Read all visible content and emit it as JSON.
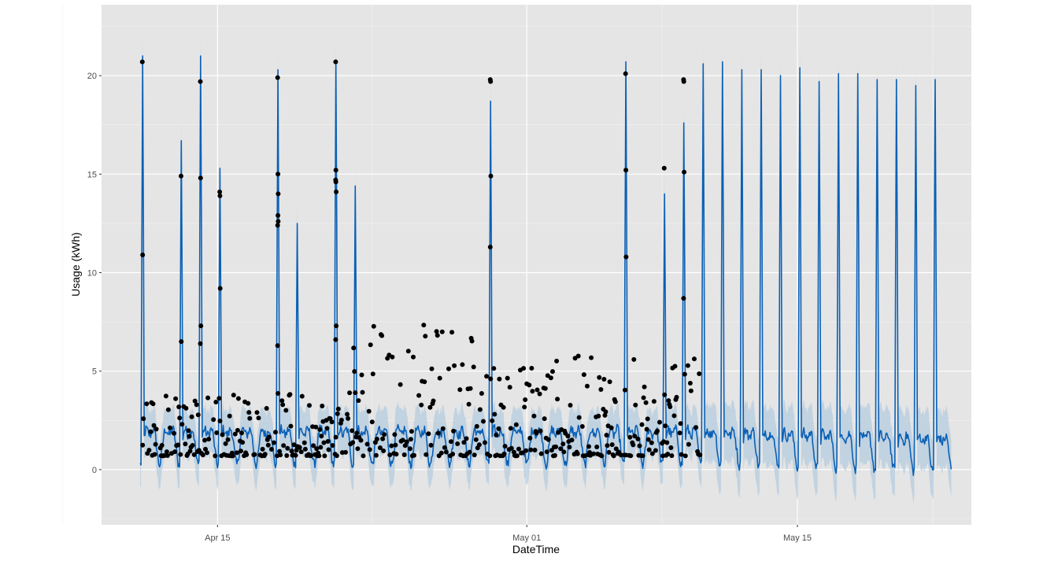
{
  "colors": {
    "panel_background": "#e5e5e5",
    "grid_major": "#ffffff",
    "grid_minor": "#f2f2f2",
    "forecast_line": "#0a60b5",
    "interval_band": "#a9c4dc",
    "points": "#000000",
    "tick_text": "#4d4d4d"
  },
  "chart_data": {
    "type": "line",
    "title": "",
    "xlabel": "DateTime",
    "ylabel": "Usage (kWh)",
    "x_type": "datetime",
    "xlim": [
      "2025-04-09",
      "2025-05-24"
    ],
    "ylim": [
      -2.8,
      23.6
    ],
    "x_ticks": [
      {
        "date": "2025-04-15",
        "label": "Apr 15"
      },
      {
        "date": "2025-05-01",
        "label": "May 01"
      },
      {
        "date": "2025-05-15",
        "label": "May 15"
      }
    ],
    "y_ticks": [
      0,
      5,
      10,
      15,
      20
    ],
    "grid": true,
    "legend": "none",
    "history_range": [
      "2025-04-11",
      "2025-05-09"
    ],
    "forecast_range": [
      "2025-04-11",
      "2025-05-22"
    ],
    "forecast_peaks": [
      {
        "date": "2025-04-11",
        "value": 21.0
      },
      {
        "date": "2025-04-13",
        "value": 16.7
      },
      {
        "date": "2025-04-14",
        "value": 21.0
      },
      {
        "date": "2025-04-15",
        "value": 15.3
      },
      {
        "date": "2025-04-18",
        "value": 20.3
      },
      {
        "date": "2025-04-19",
        "value": 12.5
      },
      {
        "date": "2025-04-21",
        "value": 20.8
      },
      {
        "date": "2025-04-22",
        "value": 14.4
      },
      {
        "date": "2025-04-29",
        "value": 18.7
      },
      {
        "date": "2025-05-06",
        "value": 20.7
      },
      {
        "date": "2025-05-08",
        "value": 14.0
      },
      {
        "date": "2025-05-09",
        "value": 17.6
      },
      {
        "date": "2025-05-10",
        "value": 20.6
      },
      {
        "date": "2025-05-11",
        "value": 20.7
      },
      {
        "date": "2025-05-12",
        "value": 20.3
      },
      {
        "date": "2025-05-13",
        "value": 20.3
      },
      {
        "date": "2025-05-14",
        "value": 20.0
      },
      {
        "date": "2025-05-15",
        "value": 20.4
      },
      {
        "date": "2025-05-16",
        "value": 19.7
      },
      {
        "date": "2025-05-17",
        "value": 20.1
      },
      {
        "date": "2025-05-18",
        "value": 20.1
      },
      {
        "date": "2025-05-19",
        "value": 19.8
      },
      {
        "date": "2025-05-20",
        "value": 19.8
      },
      {
        "date": "2025-05-21",
        "value": 19.5
      },
      {
        "date": "2025-05-22",
        "value": 19.8
      }
    ],
    "observed_peaks": [
      {
        "date": "2025-04-11",
        "values": [
          20.7,
          10.9
        ]
      },
      {
        "date": "2025-04-13",
        "values": [
          14.9,
          6.5
        ]
      },
      {
        "date": "2025-04-14",
        "values": [
          19.7,
          14.8,
          7.3,
          6.4
        ]
      },
      {
        "date": "2025-04-15",
        "values": [
          14.1,
          13.9,
          9.2
        ]
      },
      {
        "date": "2025-04-18",
        "values": [
          19.9,
          15.0,
          12.6,
          12.4,
          12.9,
          14.0,
          6.3
        ]
      },
      {
        "date": "2025-04-21",
        "values": [
          20.7,
          15.2,
          14.1,
          14.7,
          14.6,
          7.3,
          6.6
        ]
      },
      {
        "date": "2025-04-29",
        "values": [
          19.8,
          19.7,
          14.9,
          11.3
        ]
      },
      {
        "date": "2025-05-06",
        "values": [
          20.1,
          15.2,
          10.8
        ]
      },
      {
        "date": "2025-05-08",
        "values": [
          15.3
        ]
      },
      {
        "date": "2025-05-09",
        "values": [
          19.8,
          19.7,
          15.1,
          8.7
        ]
      }
    ],
    "baseline_ranges": [
      {
        "from": "2025-04-11",
        "to": "2025-04-21",
        "low": 0.7,
        "high": 4.0
      },
      {
        "from": "2025-04-22",
        "to": "2025-04-28",
        "low": 0.7,
        "high": 7.5
      },
      {
        "from": "2025-04-29",
        "to": "2025-05-09",
        "low": 0.7,
        "high": 5.8
      }
    ]
  }
}
